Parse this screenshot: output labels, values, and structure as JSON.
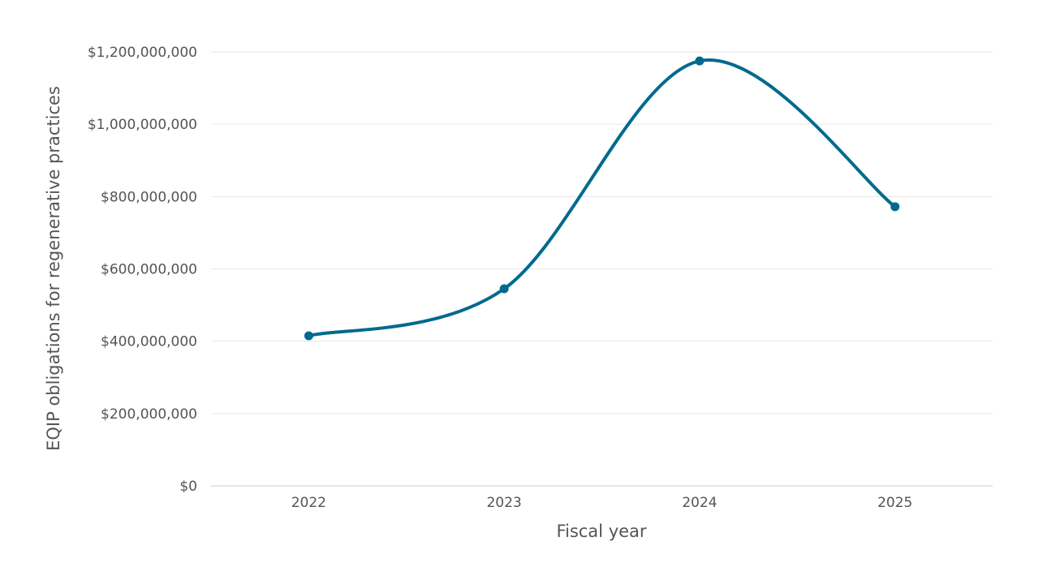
{
  "chart_data": {
    "type": "line",
    "title": "",
    "xlabel": "Fiscal year",
    "ylabel": "EQIP obligations for regenerative practices",
    "categories": [
      "2022",
      "2023",
      "2024",
      "2025"
    ],
    "series": [
      {
        "values": [
          415000000,
          545000000,
          1175000000,
          772000000
        ]
      }
    ],
    "ylim": [
      0,
      1200000000
    ],
    "yticks": [
      0,
      200000000,
      400000000,
      600000000,
      800000000,
      1000000000,
      1200000000
    ],
    "ytick_labels": [
      "$0",
      "$200,000,000",
      "$400,000,000",
      "$600,000,000",
      "$800,000,000",
      "$1,000,000,000",
      "$1,200,000,000"
    ],
    "grid": true,
    "legend": "none",
    "line_style": "smooth",
    "markers": true,
    "colors": {
      "line": "#006a8e",
      "grid": "#e6e6e6",
      "text": "#555555"
    }
  }
}
